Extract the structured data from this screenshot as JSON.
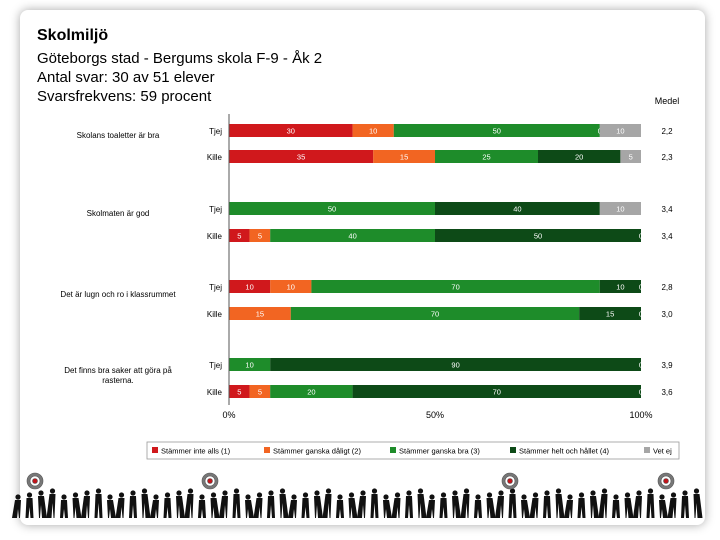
{
  "title": "Skolmiljö",
  "subtitle": "Göteborgs stad - Bergums skola F-9 - Åk 2",
  "responses": "Antal svar: 30 av 51 elever",
  "rate": "Svarsfrekvens: 59 procent",
  "chart_data": {
    "type": "bar",
    "orientation": "horizontal",
    "stacked_percent": true,
    "mean_header": "Medel",
    "questions": [
      {
        "label": "Skolans toaletter är bra",
        "rows": [
          {
            "group": "Tjej",
            "values": [
              30,
              10,
              50,
              0,
              10
            ],
            "labels": [
              "30",
              "10",
              "50",
              "0",
              "10"
            ],
            "mean": "2,2"
          },
          {
            "group": "Kille",
            "values": [
              35,
              15,
              25,
              20,
              5
            ],
            "labels": [
              "35",
              "15",
              "25",
              "20",
              "5"
            ],
            "mean": "2,3"
          }
        ]
      },
      {
        "label": "Skolmaten är god",
        "rows": [
          {
            "group": "Tjej",
            "values": [
              0,
              0,
              50,
              40,
              10
            ],
            "labels": [
              "0",
              "",
              "50",
              "40",
              "10"
            ],
            "mean": "3,4"
          },
          {
            "group": "Kille",
            "values": [
              5,
              5,
              40,
              50,
              0
            ],
            "labels": [
              "5",
              "5",
              "40",
              "50",
              "0"
            ],
            "mean": "3,4"
          }
        ]
      },
      {
        "label": "Det är lugn och ro i klassrummet",
        "rows": [
          {
            "group": "Tjej",
            "values": [
              10,
              10,
              70,
              10,
              0
            ],
            "labels": [
              "10",
              "10",
              "70",
              "10",
              "0"
            ],
            "mean": "2,8"
          },
          {
            "group": "Kille",
            "values": [
              0,
              15,
              70,
              15,
              0
            ],
            "labels": [
              "0",
              "15",
              "70",
              "15",
              "0"
            ],
            "mean": "3,0"
          }
        ]
      },
      {
        "label": "Det finns bra saker att göra på rasterna.",
        "rows": [
          {
            "group": "Tjej",
            "values": [
              0,
              0,
              10,
              90,
              0
            ],
            "labels": [
              "0",
              "",
              "10",
              "90",
              "0"
            ],
            "mean": "3,9"
          },
          {
            "group": "Kille",
            "values": [
              5,
              5,
              20,
              70,
              0
            ],
            "labels": [
              "5",
              "5",
              "20",
              "70",
              "0"
            ],
            "mean": "3,6"
          }
        ]
      }
    ],
    "x_ticks": [
      "0%",
      "50%",
      "100%"
    ],
    "xlim": [
      0,
      100
    ],
    "legend": [
      {
        "name": "Stämmer inte alls (1)",
        "color": "#d0181c"
      },
      {
        "name": "Stämmer ganska dåligt (2)",
        "color": "#f26522"
      },
      {
        "name": "Stämmer ganska bra (3)",
        "color": "#1e8c2a"
      },
      {
        "name": "Stämmer helt och hållet (4)",
        "color": "#0d4a17"
      },
      {
        "name": "Vet ej",
        "color": "#a6a6a6"
      }
    ],
    "legend_position": "bottom"
  }
}
